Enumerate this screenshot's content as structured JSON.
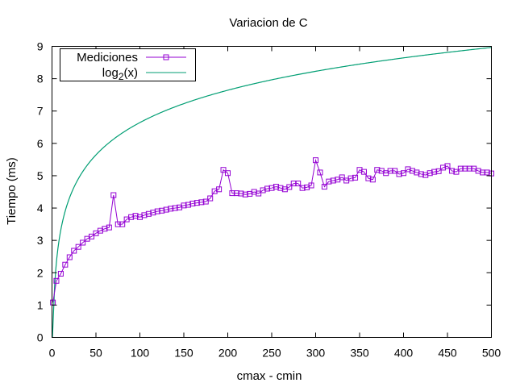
{
  "chart_data": {
    "type": "line",
    "title": "Variacion de C",
    "xlabel": "cmax - cmin",
    "ylabel": "Tiempo (ms)",
    "xlim": [
      0,
      500
    ],
    "ylim": [
      0,
      9
    ],
    "x_ticks": [
      "0",
      "50",
      "100",
      "150",
      "200",
      "250",
      "300",
      "350",
      "400",
      "450",
      "500"
    ],
    "y_ticks": [
      "0",
      "1",
      "2",
      "3",
      "4",
      "5",
      "6",
      "7",
      "8",
      "9"
    ],
    "grid": false,
    "legend_position": "top-left",
    "series": [
      {
        "name": "Mediciones",
        "color": "#9400d3",
        "marker": "square",
        "x": [
          1,
          5,
          10,
          15,
          20,
          25,
          30,
          35,
          40,
          45,
          50,
          55,
          60,
          65,
          70,
          75,
          80,
          85,
          90,
          95,
          100,
          105,
          110,
          115,
          120,
          125,
          130,
          135,
          140,
          145,
          150,
          155,
          160,
          165,
          170,
          175,
          180,
          185,
          190,
          195,
          200,
          205,
          210,
          215,
          220,
          225,
          230,
          235,
          240,
          245,
          250,
          255,
          260,
          265,
          270,
          275,
          280,
          285,
          290,
          295,
          300,
          305,
          310,
          315,
          320,
          325,
          330,
          335,
          340,
          345,
          350,
          355,
          360,
          365,
          370,
          375,
          380,
          385,
          390,
          395,
          400,
          405,
          410,
          415,
          420,
          425,
          430,
          435,
          440,
          445,
          450,
          455,
          460,
          465,
          470,
          475,
          480,
          485,
          490,
          495,
          500
        ],
        "y": [
          1.08,
          1.75,
          1.97,
          2.25,
          2.48,
          2.68,
          2.8,
          2.93,
          3.05,
          3.12,
          3.22,
          3.3,
          3.36,
          3.4,
          4.4,
          3.5,
          3.5,
          3.65,
          3.72,
          3.76,
          3.72,
          3.78,
          3.82,
          3.86,
          3.9,
          3.92,
          3.95,
          3.98,
          4.0,
          4.02,
          4.08,
          4.1,
          4.14,
          4.16,
          4.18,
          4.2,
          4.3,
          4.52,
          4.58,
          5.18,
          5.08,
          4.46,
          4.46,
          4.45,
          4.42,
          4.44,
          4.5,
          4.45,
          4.55,
          4.6,
          4.62,
          4.66,
          4.62,
          4.58,
          4.65,
          4.76,
          4.76,
          4.62,
          4.64,
          4.7,
          5.48,
          5.1,
          4.66,
          4.82,
          4.85,
          4.88,
          4.95,
          4.85,
          4.92,
          4.94,
          5.18,
          5.12,
          4.92,
          4.88,
          5.18,
          5.15,
          5.08,
          5.15,
          5.15,
          5.05,
          5.08,
          5.2,
          5.15,
          5.1,
          5.05,
          5.02,
          5.08,
          5.12,
          5.14,
          5.25,
          5.3,
          5.15,
          5.12,
          5.22,
          5.22,
          5.22,
          5.22,
          5.15,
          5.1,
          5.1,
          5.07
        ]
      },
      {
        "name": "log_2(x)",
        "color": "#009e73",
        "function": "log2(x)",
        "x_range": [
          0.5,
          500
        ]
      }
    ]
  },
  "legend": {
    "series1_label": "Mediciones",
    "series2_label_base": "log",
    "series2_label_sub": "2",
    "series2_label_arg": "(x)"
  }
}
